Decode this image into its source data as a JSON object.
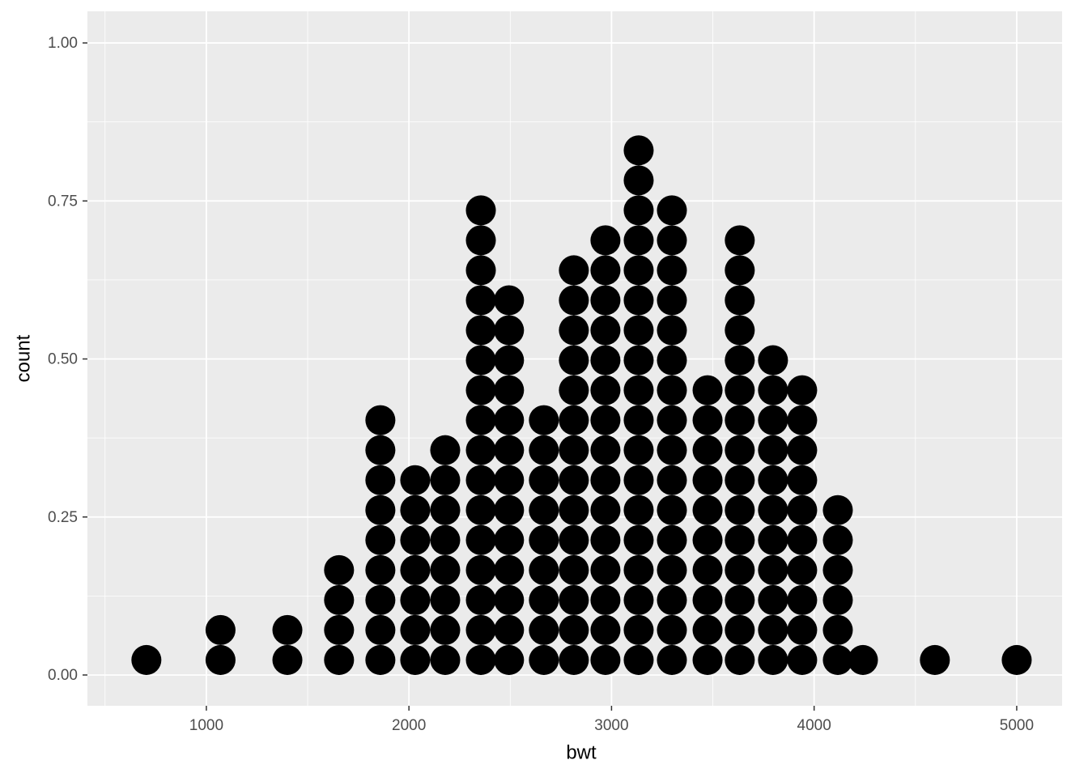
{
  "chart_data": {
    "type": "dotplot",
    "x_label": "bwt",
    "y_label": "count",
    "x": [
      704,
      1070,
      1400,
      1655,
      1859,
      2031,
      2179,
      2355,
      2494,
      2666,
      2814,
      2970,
      3134,
      3298,
      3474,
      3633,
      3797,
      3941,
      4117,
      4241,
      4596,
      5000
    ],
    "values": [
      1,
      2,
      2,
      4,
      9,
      7,
      8,
      16,
      13,
      9,
      14,
      15,
      18,
      16,
      10,
      15,
      11,
      10,
      6,
      1,
      1,
      1
    ],
    "binwidth": 148,
    "color": "#000000",
    "xlim": [
      413,
      5224
    ],
    "ylim": [
      -0.0487,
      1.05
    ],
    "xticks": [
      1000,
      2000,
      3000,
      4000,
      5000
    ],
    "yticks": [
      {
        "value": 0,
        "label": "0.00"
      },
      {
        "value": 0.25,
        "label": "0.25"
      },
      {
        "value": 0.5,
        "label": "0.50"
      },
      {
        "value": 0.75,
        "label": "0.75"
      },
      {
        "value": 1,
        "label": "1.00"
      }
    ],
    "grid": true
  }
}
